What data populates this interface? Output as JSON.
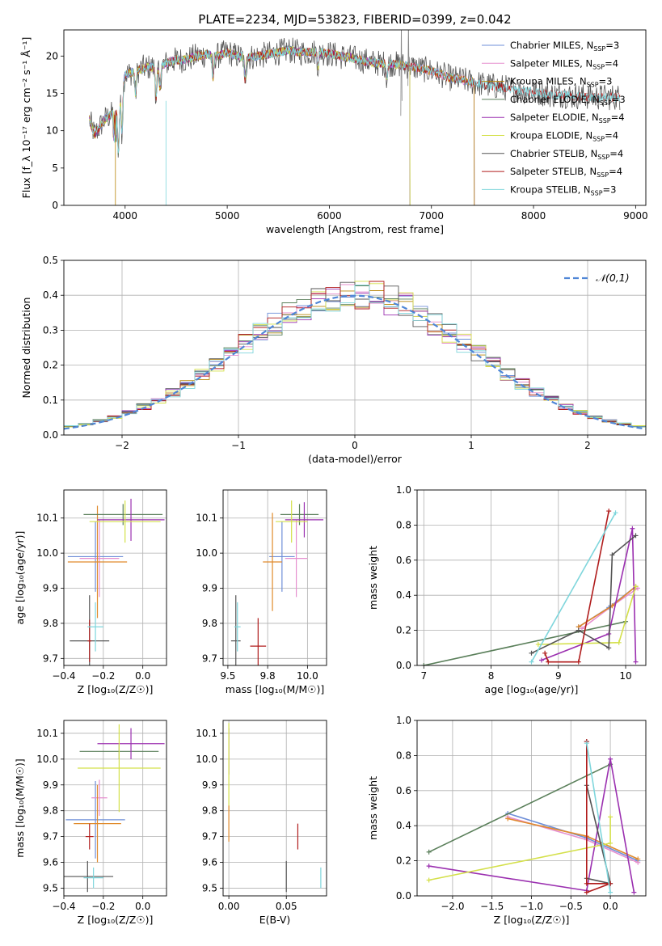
{
  "figure": {
    "title": "PLATE=2234, MJD=53823, FIBERID=0399, z=0.042"
  },
  "chart_data": [
    {
      "id": "spectrum",
      "type": "line",
      "xlabel": "wavelength [Angstrom, rest frame]",
      "ylabel": "Flux [f_λ 10⁻¹⁷ erg cm⁻² s⁻¹ Å⁻¹]",
      "xlim": [
        3400,
        9100
      ],
      "ylim": [
        0,
        23.5
      ],
      "xticks": [
        4000,
        5000,
        6000,
        7000,
        8000,
        9000
      ],
      "yticks": [
        0,
        5,
        10,
        15,
        20
      ],
      "legend_position": "top-right",
      "continuum": {
        "x": [
          3650,
          3700,
          3800,
          3900,
          4000,
          4100,
          4200,
          4300,
          4400,
          4500,
          4600,
          4700,
          4800,
          4900,
          5000,
          5100,
          5200,
          5300,
          5400,
          5500,
          5600,
          5700,
          5800,
          5900,
          6000,
          6100,
          6200,
          6300,
          6400,
          6500,
          6600,
          6700,
          6800,
          6900,
          7000,
          7100,
          7200,
          7300,
          7400,
          7500,
          7600,
          7700,
          7800,
          7900,
          8000,
          8100,
          8200,
          8300,
          8400,
          8500,
          8600,
          8700,
          8800
        ],
        "y": [
          11.5,
          9.5,
          11.5,
          12.5,
          17.5,
          18.0,
          18.5,
          18.5,
          19.0,
          19.5,
          19.5,
          20.0,
          20.2,
          20.0,
          20.5,
          20.0,
          19.8,
          20.0,
          20.2,
          20.5,
          20.8,
          20.5,
          20.5,
          20.6,
          20.3,
          20.0,
          19.8,
          19.5,
          19.2,
          19.0,
          19.0,
          18.8,
          18.6,
          18.3,
          18.0,
          17.5,
          17.0,
          16.8,
          16.5,
          16.2,
          16.0,
          15.8,
          15.6,
          15.3,
          15.2,
          15.0,
          14.8,
          14.8,
          14.6,
          14.6,
          14.5,
          14.5,
          14.5
        ]
      },
      "series": [
        {
          "name": "Chabrier MILES, N_SSP=3",
          "label_main": "Chabrier MILES, N",
          "label_sub": "SSP",
          "label_end": "=3",
          "color": "#6f8fd8"
        },
        {
          "name": "Salpeter MILES, N_SSP=4",
          "label_main": "Salpeter MILES, N",
          "label_sub": "SSP",
          "label_end": "=4",
          "color": "#e68fcf"
        },
        {
          "name": "Kroupa MILES, N_SSP=3",
          "label_main": "Kroupa MILES, N",
          "label_sub": "SSP",
          "label_end": "=3",
          "color": "#b8860b"
        },
        {
          "name": "Chabrier ELODIE, N_SSP=3",
          "label_main": "Chabrier ELODIE, N",
          "label_sub": "SSP",
          "label_end": "=3",
          "color": "#5a7f5a"
        },
        {
          "name": "Salpeter ELODIE, N_SSP=4",
          "label_main": "Salpeter ELODIE, N",
          "label_sub": "SSP",
          "label_end": "=4",
          "color": "#9b30b0"
        },
        {
          "name": "Kroupa ELODIE, N_SSP=4",
          "label_main": "Kroupa ELODIE, N",
          "label_sub": "SSP",
          "label_end": "=4",
          "color": "#d4e04a"
        },
        {
          "name": "Chabrier STELIB, N_SSP=4",
          "label_main": "Chabrier STELIB, N",
          "label_sub": "SSP",
          "label_end": "=4",
          "color": "#555555"
        },
        {
          "name": "Salpeter STELIB, N_SSP=4",
          "label_main": "Salpeter STELIB, N",
          "label_sub": "SSP",
          "label_end": "=4",
          "color": "#b01c1c"
        },
        {
          "name": "Kroupa STELIB, N_SSP=3",
          "label_main": "Kroupa STELIB, N",
          "label_sub": "SSP",
          "label_end": "=3",
          "color": "#7fd6dc"
        }
      ]
    },
    {
      "id": "residuals",
      "type": "histogram",
      "xlabel": "(data-model)/error",
      "ylabel": "Normed distribution",
      "xlim": [
        -2.5,
        2.5
      ],
      "ylim": [
        0,
        0.5
      ],
      "xticks": [
        -2,
        -1,
        0,
        1,
        2
      ],
      "yticks": [
        0.0,
        0.1,
        0.2,
        0.3,
        0.4,
        0.5
      ],
      "bins": 40,
      "legend": "𝒩(0,1)",
      "legend_position": "top-right",
      "gaussian_color": "#4f86d6"
    },
    {
      "id": "age-vs-Z",
      "type": "scatter-errorbar",
      "xlabel": "Z [log₁₀(Z/Z☉)]",
      "ylabel": "age [log₁₀(age/yr)]",
      "xlim": [
        -0.4,
        0.12
      ],
      "ylim": [
        9.68,
        10.18
      ],
      "xticks": [
        -0.4,
        -0.2,
        0.0
      ],
      "yticks": [
        9.7,
        9.8,
        9.9,
        10.0,
        10.1
      ],
      "points": [
        {
          "x": -0.24,
          "y": 9.99,
          "xerr": 0.14,
          "yerr": 0.1,
          "color": "#6f8fd8"
        },
        {
          "x": -0.22,
          "y": 9.985,
          "xerr": 0.1,
          "yerr": 0.11,
          "color": "#e68fcf"
        },
        {
          "x": -0.23,
          "y": 9.975,
          "xerr": 0.15,
          "yerr": 0.16,
          "color": "#e08a2c"
        },
        {
          "x": -0.1,
          "y": 10.11,
          "xerr": 0.2,
          "yerr": 0.03,
          "color": "#5a7f5a"
        },
        {
          "x": -0.06,
          "y": 10.095,
          "xerr": 0.17,
          "yerr": 0.06,
          "color": "#9b30b0"
        },
        {
          "x": -0.09,
          "y": 10.09,
          "xerr": 0.18,
          "yerr": 0.06,
          "color": "#d4e04a"
        },
        {
          "x": -0.27,
          "y": 9.75,
          "xerr": 0.1,
          "yerr": 0.13,
          "color": "#555555"
        },
        {
          "x": -0.27,
          "y": 9.75,
          "xerr": 0.01,
          "yerr": 0.06,
          "color": "#b01c1c"
        },
        {
          "x": -0.24,
          "y": 9.79,
          "xerr": 0.04,
          "yerr": 0.07,
          "color": "#7fd6dc"
        }
      ]
    },
    {
      "id": "age-vs-mass",
      "type": "scatter-errorbar",
      "xlabel": "mass [log₁₀(M/M☉)]",
      "ylabel": "",
      "xlim": [
        9.47,
        10.12
      ],
      "ylim": [
        9.68,
        10.18
      ],
      "xticks": [
        9.5,
        9.75,
        10.0
      ],
      "yticks": [
        9.7,
        9.8,
        9.9,
        10.0,
        10.1
      ],
      "points": [
        {
          "x": 9.84,
          "y": 9.99,
          "xerr": 0.08,
          "yerr": 0.1,
          "color": "#6f8fd8"
        },
        {
          "x": 9.93,
          "y": 9.985,
          "xerr": 0.07,
          "yerr": 0.11,
          "color": "#e68fcf"
        },
        {
          "x": 9.78,
          "y": 9.975,
          "xerr": 0.06,
          "yerr": 0.14,
          "color": "#e08a2c"
        },
        {
          "x": 9.95,
          "y": 10.11,
          "xerr": 0.12,
          "yerr": 0.03,
          "color": "#5a7f5a"
        },
        {
          "x": 9.98,
          "y": 10.095,
          "xerr": 0.12,
          "yerr": 0.05,
          "color": "#9b30b0"
        },
        {
          "x": 9.9,
          "y": 10.09,
          "xerr": 0.1,
          "yerr": 0.06,
          "color": "#d4e04a"
        },
        {
          "x": 9.55,
          "y": 9.75,
          "xerr": 0.03,
          "yerr": 0.13,
          "color": "#555555"
        },
        {
          "x": 9.69,
          "y": 9.735,
          "xerr": 0.05,
          "yerr": 0.08,
          "color": "#b01c1c"
        },
        {
          "x": 9.56,
          "y": 9.79,
          "xerr": 0.02,
          "yerr": 0.07,
          "color": "#7fd6dc"
        }
      ]
    },
    {
      "id": "mass-weight-vs-age",
      "type": "line",
      "xlabel": "age [log₁₀(age/yr)]",
      "ylabel": "mass weight",
      "xlim": [
        6.9,
        10.3
      ],
      "ylim": [
        0.0,
        1.0
      ],
      "xticks": [
        7,
        8,
        9,
        10
      ],
      "yticks": [
        0.0,
        0.2,
        0.4,
        0.6,
        0.8,
        1.0
      ],
      "series": [
        {
          "color": "#6f8fd8",
          "x": [
            9.3,
            9.75,
            10.15
          ],
          "y": [
            0.22,
            0.33,
            0.45
          ]
        },
        {
          "color": "#e68fcf",
          "x": [
            9.35,
            9.8,
            10.18
          ],
          "y": [
            0.21,
            0.34,
            0.44
          ]
        },
        {
          "color": "#e08a2c",
          "x": [
            9.3,
            9.8,
            10.15
          ],
          "y": [
            0.22,
            0.34,
            0.45
          ]
        },
        {
          "color": "#5a7f5a",
          "x": [
            7.0,
            10.0
          ],
          "y": [
            0.0,
            0.25
          ]
        },
        {
          "color": "#9b30b0",
          "x": [
            8.75,
            9.75,
            10.1,
            10.15
          ],
          "y": [
            0.03,
            0.18,
            0.78,
            0.02
          ]
        },
        {
          "color": "#d4e04a",
          "x": [
            8.7,
            9.9,
            10.15
          ],
          "y": [
            0.12,
            0.13,
            0.45
          ]
        },
        {
          "color": "#555555",
          "x": [
            8.6,
            9.3,
            9.75,
            9.8,
            10.15
          ],
          "y": [
            0.07,
            0.2,
            0.1,
            0.63,
            0.74
          ]
        },
        {
          "color": "#b01c1c",
          "x": [
            8.8,
            8.85,
            9.3,
            9.75
          ],
          "y": [
            0.07,
            0.02,
            0.02,
            0.88
          ]
        },
        {
          "color": "#7fd6dc",
          "x": [
            8.6,
            9.85
          ],
          "y": [
            0.02,
            0.87
          ]
        }
      ]
    },
    {
      "id": "mass-vs-Z",
      "type": "scatter-errorbar",
      "xlabel": "Z [log₁₀(Z/Z☉)]",
      "ylabel": "mass [log₁₀(M/M☉)]",
      "xlim": [
        -0.4,
        0.12
      ],
      "ylim": [
        9.47,
        10.15
      ],
      "xticks": [
        -0.4,
        -0.2,
        0.0
      ],
      "yticks": [
        9.5,
        9.6,
        9.7,
        9.8,
        9.9,
        10.0,
        10.1
      ],
      "points": [
        {
          "x": -0.24,
          "y": 9.765,
          "xerr": 0.15,
          "yerr": 0.15,
          "color": "#6f8fd8"
        },
        {
          "x": -0.22,
          "y": 9.85,
          "xerr": 0.04,
          "yerr": 0.07,
          "color": "#e68fcf"
        },
        {
          "x": -0.23,
          "y": 9.75,
          "xerr": 0.12,
          "yerr": 0.15,
          "color": "#e08a2c"
        },
        {
          "x": -0.12,
          "y": 10.03,
          "xerr": 0.2,
          "yerr": 0.03,
          "color": "#5a7f5a"
        },
        {
          "x": -0.06,
          "y": 10.06,
          "xerr": 0.17,
          "yerr": 0.06,
          "color": "#9b30b0"
        },
        {
          "x": -0.12,
          "y": 9.965,
          "xerr": 0.21,
          "yerr": 0.17,
          "color": "#d4e04a"
        },
        {
          "x": -0.28,
          "y": 9.545,
          "xerr": 0.13,
          "yerr": 0.06,
          "color": "#555555"
        },
        {
          "x": -0.27,
          "y": 9.7,
          "xerr": 0.02,
          "yerr": 0.05,
          "color": "#b01c1c"
        },
        {
          "x": -0.25,
          "y": 9.54,
          "xerr": 0.05,
          "yerr": 0.04,
          "color": "#7fd6dc"
        }
      ]
    },
    {
      "id": "mass-vs-ebv",
      "type": "scatter-errorbar",
      "xlabel": "E(B-V)",
      "ylabel": "",
      "xlim": [
        -0.005,
        0.085
      ],
      "ylim": [
        9.47,
        10.15
      ],
      "xticks": [
        0.0,
        0.05
      ],
      "yticks": [
        9.5,
        9.6,
        9.7,
        9.8,
        9.9,
        10.0,
        10.1
      ],
      "points": [
        {
          "x": 0.0,
          "y": 10.03,
          "xerr": 0.0,
          "yerr": 0.09,
          "color": "#9b30b0"
        },
        {
          "x": 0.0,
          "y": 9.97,
          "xerr": 0.0,
          "yerr": 0.17,
          "color": "#d4e04a"
        },
        {
          "x": 0.0,
          "y": 9.75,
          "xerr": 0.0,
          "yerr": 0.07,
          "color": "#e08a2c"
        },
        {
          "x": 0.05,
          "y": 9.545,
          "xerr": 0.0,
          "yerr": 0.06,
          "color": "#555555"
        },
        {
          "x": 0.06,
          "y": 9.7,
          "xerr": 0.0,
          "yerr": 0.05,
          "color": "#b01c1c"
        },
        {
          "x": 0.08,
          "y": 9.54,
          "xerr": 0.0,
          "yerr": 0.04,
          "color": "#7fd6dc"
        }
      ]
    },
    {
      "id": "mass-weight-vs-Z",
      "type": "line",
      "xlabel": "Z [log₁₀(Z/Z☉)]",
      "ylabel": "mass weight",
      "xlim": [
        -2.45,
        0.45
      ],
      "ylim": [
        0.0,
        1.0
      ],
      "xticks": [
        -2.0,
        -1.5,
        -1.0,
        -0.5,
        0.0
      ],
      "yticks": [
        0.0,
        0.2,
        0.4,
        0.6,
        0.8,
        1.0
      ],
      "series": [
        {
          "color": "#6f8fd8",
          "x": [
            -1.3,
            -0.3,
            0.35
          ],
          "y": [
            0.47,
            0.33,
            0.2
          ]
        },
        {
          "color": "#e68fcf",
          "x": [
            -1.3,
            -0.3,
            0.35
          ],
          "y": [
            0.45,
            0.32,
            0.19
          ]
        },
        {
          "color": "#e08a2c",
          "x": [
            -1.3,
            -0.3,
            0.35
          ],
          "y": [
            0.44,
            0.34,
            0.21
          ]
        },
        {
          "color": "#5a7f5a",
          "x": [
            -2.3,
            0.0
          ],
          "y": [
            0.25,
            0.75
          ]
        },
        {
          "color": "#9b30b0",
          "x": [
            -2.3,
            -0.3,
            0.0,
            0.3
          ],
          "y": [
            0.17,
            0.03,
            0.78,
            0.02
          ]
        },
        {
          "color": "#d4e04a",
          "x": [
            -2.3,
            0.0,
            0.0
          ],
          "y": [
            0.09,
            0.3,
            0.45
          ]
        },
        {
          "color": "#555555",
          "x": [
            -0.3,
            0.0,
            -0.3,
            -0.3
          ],
          "y": [
            0.1,
            0.07,
            0.63,
            0.88
          ]
        },
        {
          "color": "#b01c1c",
          "x": [
            -0.3,
            0.0,
            -0.3,
            -0.3
          ],
          "y": [
            0.02,
            0.07,
            0.07,
            0.88
          ]
        },
        {
          "color": "#7fd6dc",
          "x": [
            0.0,
            -0.3
          ],
          "y": [
            0.02,
            0.87
          ]
        }
      ]
    }
  ]
}
